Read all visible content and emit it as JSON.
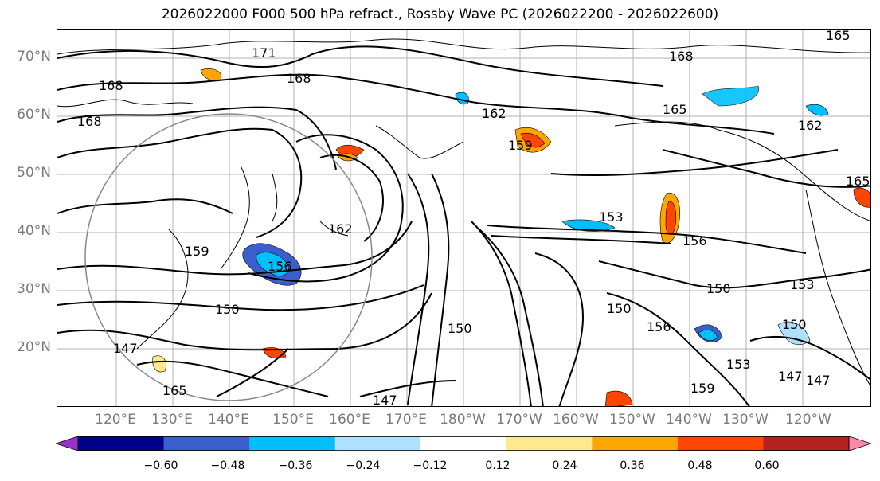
{
  "title": "2026022000 F000 500 hPa refract., Rossby Wave PC (2026022200 - 2026022600)",
  "lat_labels": [
    "70°N",
    "60°N",
    "50°N",
    "40°N",
    "30°N",
    "20°N"
  ],
  "lon_labels": [
    "120°E",
    "130°E",
    "140°E",
    "150°E",
    "160°E",
    "170°E",
    "180°W",
    "170°W",
    "160°W",
    "150°W",
    "140°W",
    "130°W",
    "120°W"
  ],
  "contour_labels": [
    "171",
    "168",
    "168",
    "168",
    "168",
    "165",
    "165",
    "162",
    "162",
    "159",
    "162",
    "159",
    "156",
    "156",
    "153",
    "153",
    "150",
    "150",
    "150",
    "150",
    "150",
    "147",
    "147",
    "147",
    "165",
    "165",
    "156",
    "159",
    "153",
    "147"
  ],
  "colorbar": {
    "ticks": [
      "−0.60",
      "−0.48",
      "−0.36",
      "−0.24",
      "−0.12",
      "0.12",
      "0.24",
      "0.36",
      "0.48",
      "0.60"
    ],
    "colors": [
      "#9932cc",
      "#00008b",
      "#3a5fcd",
      "#00bfff",
      "#b0e0ff",
      "#ffffff",
      "#ffe98a",
      "#ffa500",
      "#ff4500",
      "#b22222",
      "#ff88aa"
    ]
  }
}
